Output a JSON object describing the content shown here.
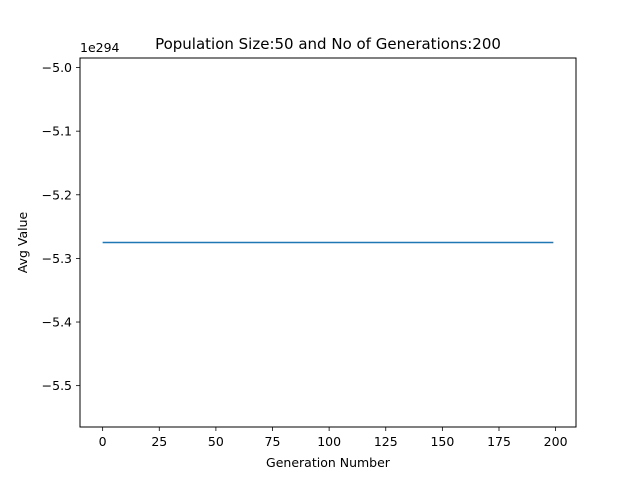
{
  "chart_data": {
    "type": "line",
    "title": "Population Size:50 and No of Generations:200",
    "xlabel": "Generation Number",
    "ylabel": "Avg Value",
    "offset_label": "1e294",
    "x_ticks": [
      0,
      25,
      50,
      75,
      100,
      125,
      150,
      175,
      200
    ],
    "y_ticks": [
      -5.0,
      -5.1,
      -5.2,
      -5.3,
      -5.4,
      -5.5
    ],
    "y_tick_labels": [
      "−5.0",
      "−5.1",
      "−5.2",
      "−5.3",
      "−5.4",
      "−5.5"
    ],
    "xlim": [
      -10,
      209
    ],
    "ylim": [
      -5.565,
      -4.985
    ],
    "grid": false,
    "series": [
      {
        "color": "#1f77b4",
        "x": [
          0,
          199
        ],
        "y": [
          -5.275,
          -5.275
        ]
      }
    ]
  }
}
